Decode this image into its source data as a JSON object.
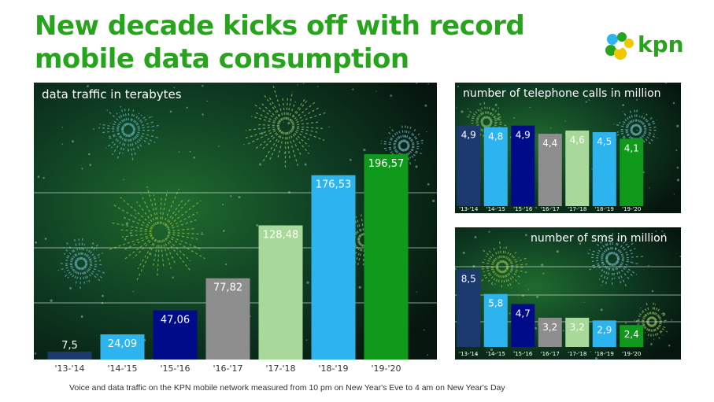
{
  "title": {
    "line1": "New decade kicks off with record",
    "line2": "mobile data consumption"
  },
  "logo": {
    "text": "kpn"
  },
  "footnote": "Voice and data traffic on the KPN mobile network measured from 10 pm on New Year's Eve to 4 am on New Year's Day",
  "colors": [
    "#1d3a6e",
    "#2db4ef",
    "#000b8a",
    "#8e8e8e",
    "#a8d89a",
    "#2db4ef",
    "#0f9a1c"
  ],
  "chart_data": [
    {
      "type": "bar",
      "title": "data traffic in terabytes",
      "categories": [
        "'13-'14",
        "'14-'15",
        "'15-'16",
        "'16-'17",
        "'17-'18",
        "'18-'19",
        "'19-'20"
      ],
      "values": [
        7.5,
        24.09,
        47.06,
        77.82,
        128.48,
        176.53,
        196.57
      ],
      "value_labels": [
        "7,5",
        "24,09",
        "47,06",
        "77,82",
        "128,48",
        "176,53",
        "196,57"
      ],
      "ylim": [
        0,
        220
      ],
      "grid": true,
      "legend": "none"
    },
    {
      "type": "bar",
      "title": "number of telephone calls in million",
      "categories": [
        "'13-'14",
        "'14-'15",
        "'15-'16",
        "'16-'17",
        "'17-'18",
        "'18-'19",
        "'19-'20"
      ],
      "values": [
        4.9,
        4.8,
        4.9,
        4.4,
        4.6,
        4.5,
        4.1
      ],
      "value_labels": [
        "4,9",
        "4,8",
        "4,9",
        "4,4",
        "4,6",
        "4,5",
        "4,1"
      ],
      "ylim": [
        0,
        5.6
      ],
      "grid": false,
      "legend": "none"
    },
    {
      "type": "bar",
      "title": "number of sms in million",
      "categories": [
        "'13-'14",
        "'14-'15",
        "'15-'16",
        "'16-'17",
        "'17-'18",
        "'18-'19",
        "'19-'20"
      ],
      "values": [
        8.5,
        5.8,
        4.7,
        3.2,
        3.2,
        2.9,
        2.4
      ],
      "value_labels": [
        "8,5",
        "5,8",
        "4,7",
        "3,2",
        "3,2",
        "2,9",
        "2,4"
      ],
      "ylim": [
        0,
        10
      ],
      "grid": true,
      "legend": "none"
    }
  ]
}
